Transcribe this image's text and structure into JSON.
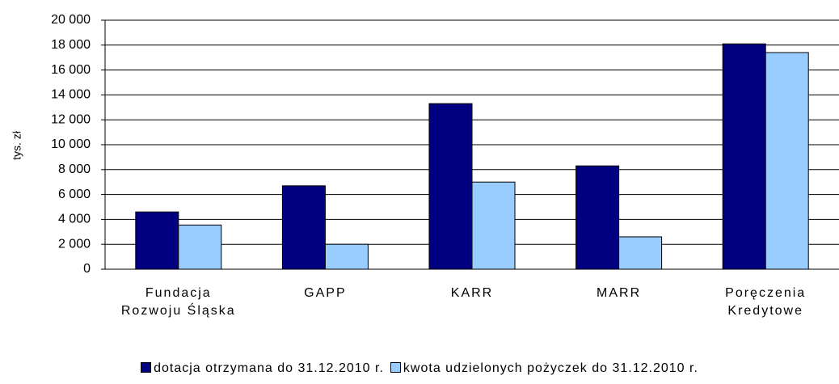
{
  "chart_data": {
    "type": "bar",
    "y_label": "tys. zł",
    "categories": [
      "Fundacja\nRozwoju Śląska",
      "GAPP",
      "KARR",
      "MARR",
      "Poręczenia\nKredytowe"
    ],
    "series": [
      {
        "name": "dotacja otrzymana do 31.12.2010 r.",
        "color": "#000080",
        "values": [
          4600,
          6700,
          13300,
          8300,
          18100
        ]
      },
      {
        "name": "kwota udzielonych pożyczek do 31.12.2010 r.",
        "color": "#99ccff",
        "values": [
          3550,
          2000,
          7000,
          2600,
          17400
        ]
      }
    ],
    "ylim": [
      0,
      20000
    ],
    "yticks": [
      0,
      {
        "value": 2000,
        "label": "2 000"
      },
      {
        "value": 4000,
        "label": "4 000"
      },
      {
        "value": 6000,
        "label": "6 000"
      },
      {
        "value": 8000,
        "label": "8 000"
      },
      {
        "value": 10000,
        "label": "10 000"
      },
      {
        "value": 12000,
        "label": "12 000"
      },
      {
        "value": 14000,
        "label": "14 000"
      },
      {
        "value": 16000,
        "label": "16 000"
      },
      {
        "value": 18000,
        "label": "18 000"
      },
      {
        "value": 20000,
        "label": "20 000"
      }
    ],
    "grid": true,
    "legend": "bottom"
  }
}
